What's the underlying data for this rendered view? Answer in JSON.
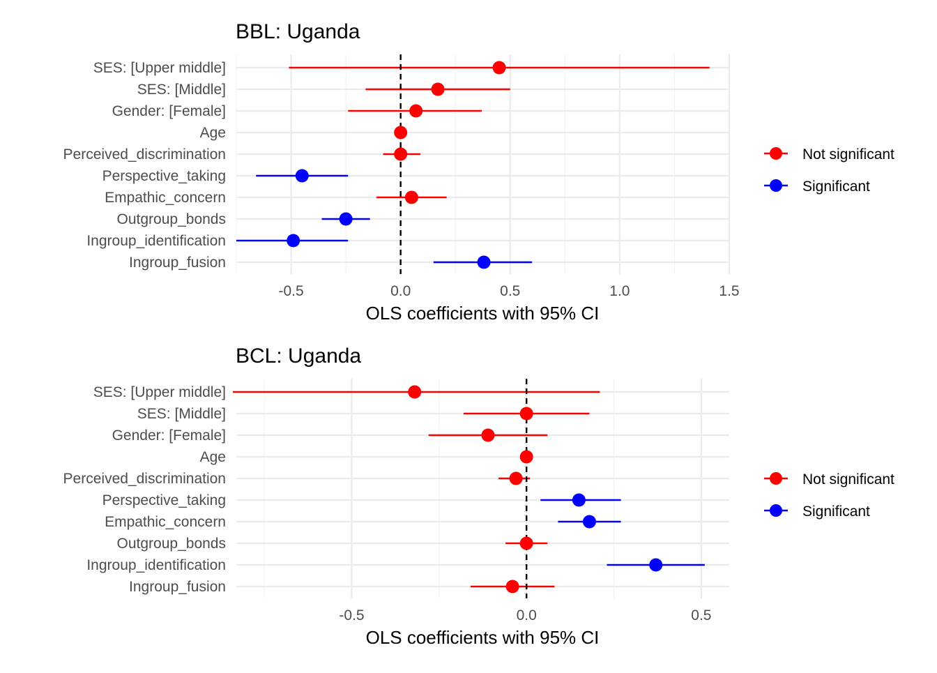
{
  "chart_data": [
    {
      "type": "forest",
      "title": "BBL: Uganda",
      "xlabel": "OLS coefficients with 95% CI",
      "xlim": [
        -0.75,
        1.5
      ],
      "xticks": [
        -0.5,
        0.0,
        0.5,
        1.0,
        1.5
      ],
      "xtick_labels": [
        "-0.5",
        "0.0",
        "0.5",
        "1.0",
        "1.5"
      ],
      "reference_line": 0,
      "categories": [
        "SES:  [Upper middle]",
        "SES:  [Middle]",
        "Gender:  [Female]",
        "Age",
        "Perceived_discrimination",
        "Perspective_taking",
        "Empathic_concern",
        "Outgroup_bonds",
        "Ingroup_identification",
        "Ingroup_fusion"
      ],
      "estimate": [
        0.45,
        0.17,
        0.07,
        0.0,
        0.0,
        -0.45,
        0.05,
        -0.25,
        -0.49,
        0.38
      ],
      "ci_low": [
        -0.51,
        -0.16,
        -0.24,
        -0.01,
        -0.08,
        -0.66,
        -0.11,
        -0.36,
        -0.75,
        0.15
      ],
      "ci_high": [
        1.41,
        0.5,
        0.37,
        0.01,
        0.09,
        -0.24,
        0.21,
        -0.14,
        -0.24,
        0.6
      ],
      "significance": [
        "Not significant",
        "Not significant",
        "Not significant",
        "Not significant",
        "Not significant",
        "Significant",
        "Not significant",
        "Significant",
        "Significant",
        "Significant"
      ],
      "legend": [
        {
          "label": "Not significant",
          "color": "#ff0000"
        },
        {
          "label": "Significant",
          "color": "#0000ff"
        }
      ],
      "legend_position": "right",
      "grid": true
    },
    {
      "type": "forest",
      "title": "BCL: Uganda",
      "xlabel": "OLS coefficients with 95% CI",
      "xlim": [
        -0.83,
        0.58
      ],
      "xticks": [
        -0.5,
        0.0,
        0.5
      ],
      "xtick_labels": [
        "-0.5",
        "0.0",
        "0.5"
      ],
      "reference_line": 0,
      "categories": [
        "SES:  [Upper middle]",
        "SES:  [Middle]",
        "Gender:  [Female]",
        "Age",
        "Perceived_discrimination",
        "Perspective_taking",
        "Empathic_concern",
        "Outgroup_bonds",
        "Ingroup_identification",
        "Ingroup_fusion"
      ],
      "estimate": [
        -0.32,
        0.0,
        -0.11,
        0.0,
        -0.03,
        0.15,
        0.18,
        0.0,
        0.37,
        -0.04
      ],
      "ci_low": [
        -0.84,
        -0.18,
        -0.28,
        -0.01,
        -0.08,
        0.04,
        0.09,
        -0.06,
        0.23,
        -0.16
      ],
      "ci_high": [
        0.21,
        0.18,
        0.06,
        0.01,
        0.01,
        0.27,
        0.27,
        0.06,
        0.51,
        0.08
      ],
      "significance": [
        "Not significant",
        "Not significant",
        "Not significant",
        "Not significant",
        "Not significant",
        "Significant",
        "Significant",
        "Not significant",
        "Significant",
        "Not significant"
      ],
      "legend": [
        {
          "label": "Not significant",
          "color": "#ff0000"
        },
        {
          "label": "Significant",
          "color": "#0000ff"
        }
      ],
      "legend_position": "right",
      "grid": true
    }
  ]
}
